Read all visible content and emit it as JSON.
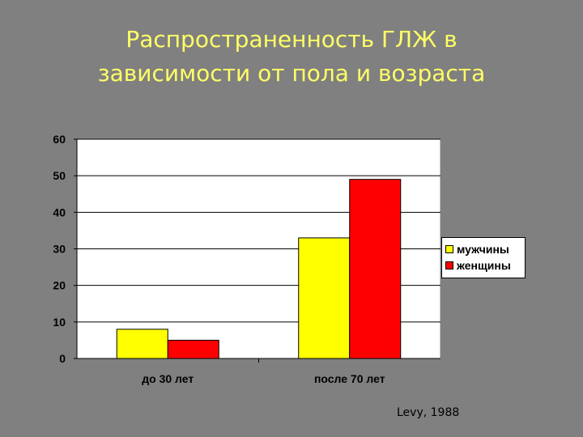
{
  "slide": {
    "title_line1": "Распространенность ГЛЖ в",
    "title_line2": "зависимости от пола и возраста",
    "source": "Levy, 1988"
  },
  "chart_data": {
    "type": "bar",
    "categories": [
      "до 30 лет",
      "после 70 лет"
    ],
    "series": [
      {
        "name": "мужчины",
        "values": [
          8,
          33
        ],
        "color": "#FFFF00"
      },
      {
        "name": "женщины",
        "values": [
          5,
          49
        ],
        "color": "#FF0000"
      }
    ],
    "ylim": [
      0,
      60
    ],
    "yticks": [
      0,
      10,
      20,
      30,
      40,
      50,
      60
    ],
    "grid": true,
    "legend": "right",
    "colors": {
      "text": "#FFFF66",
      "plot_bg": "#FFFFFF",
      "gridline": "#000000"
    }
  }
}
